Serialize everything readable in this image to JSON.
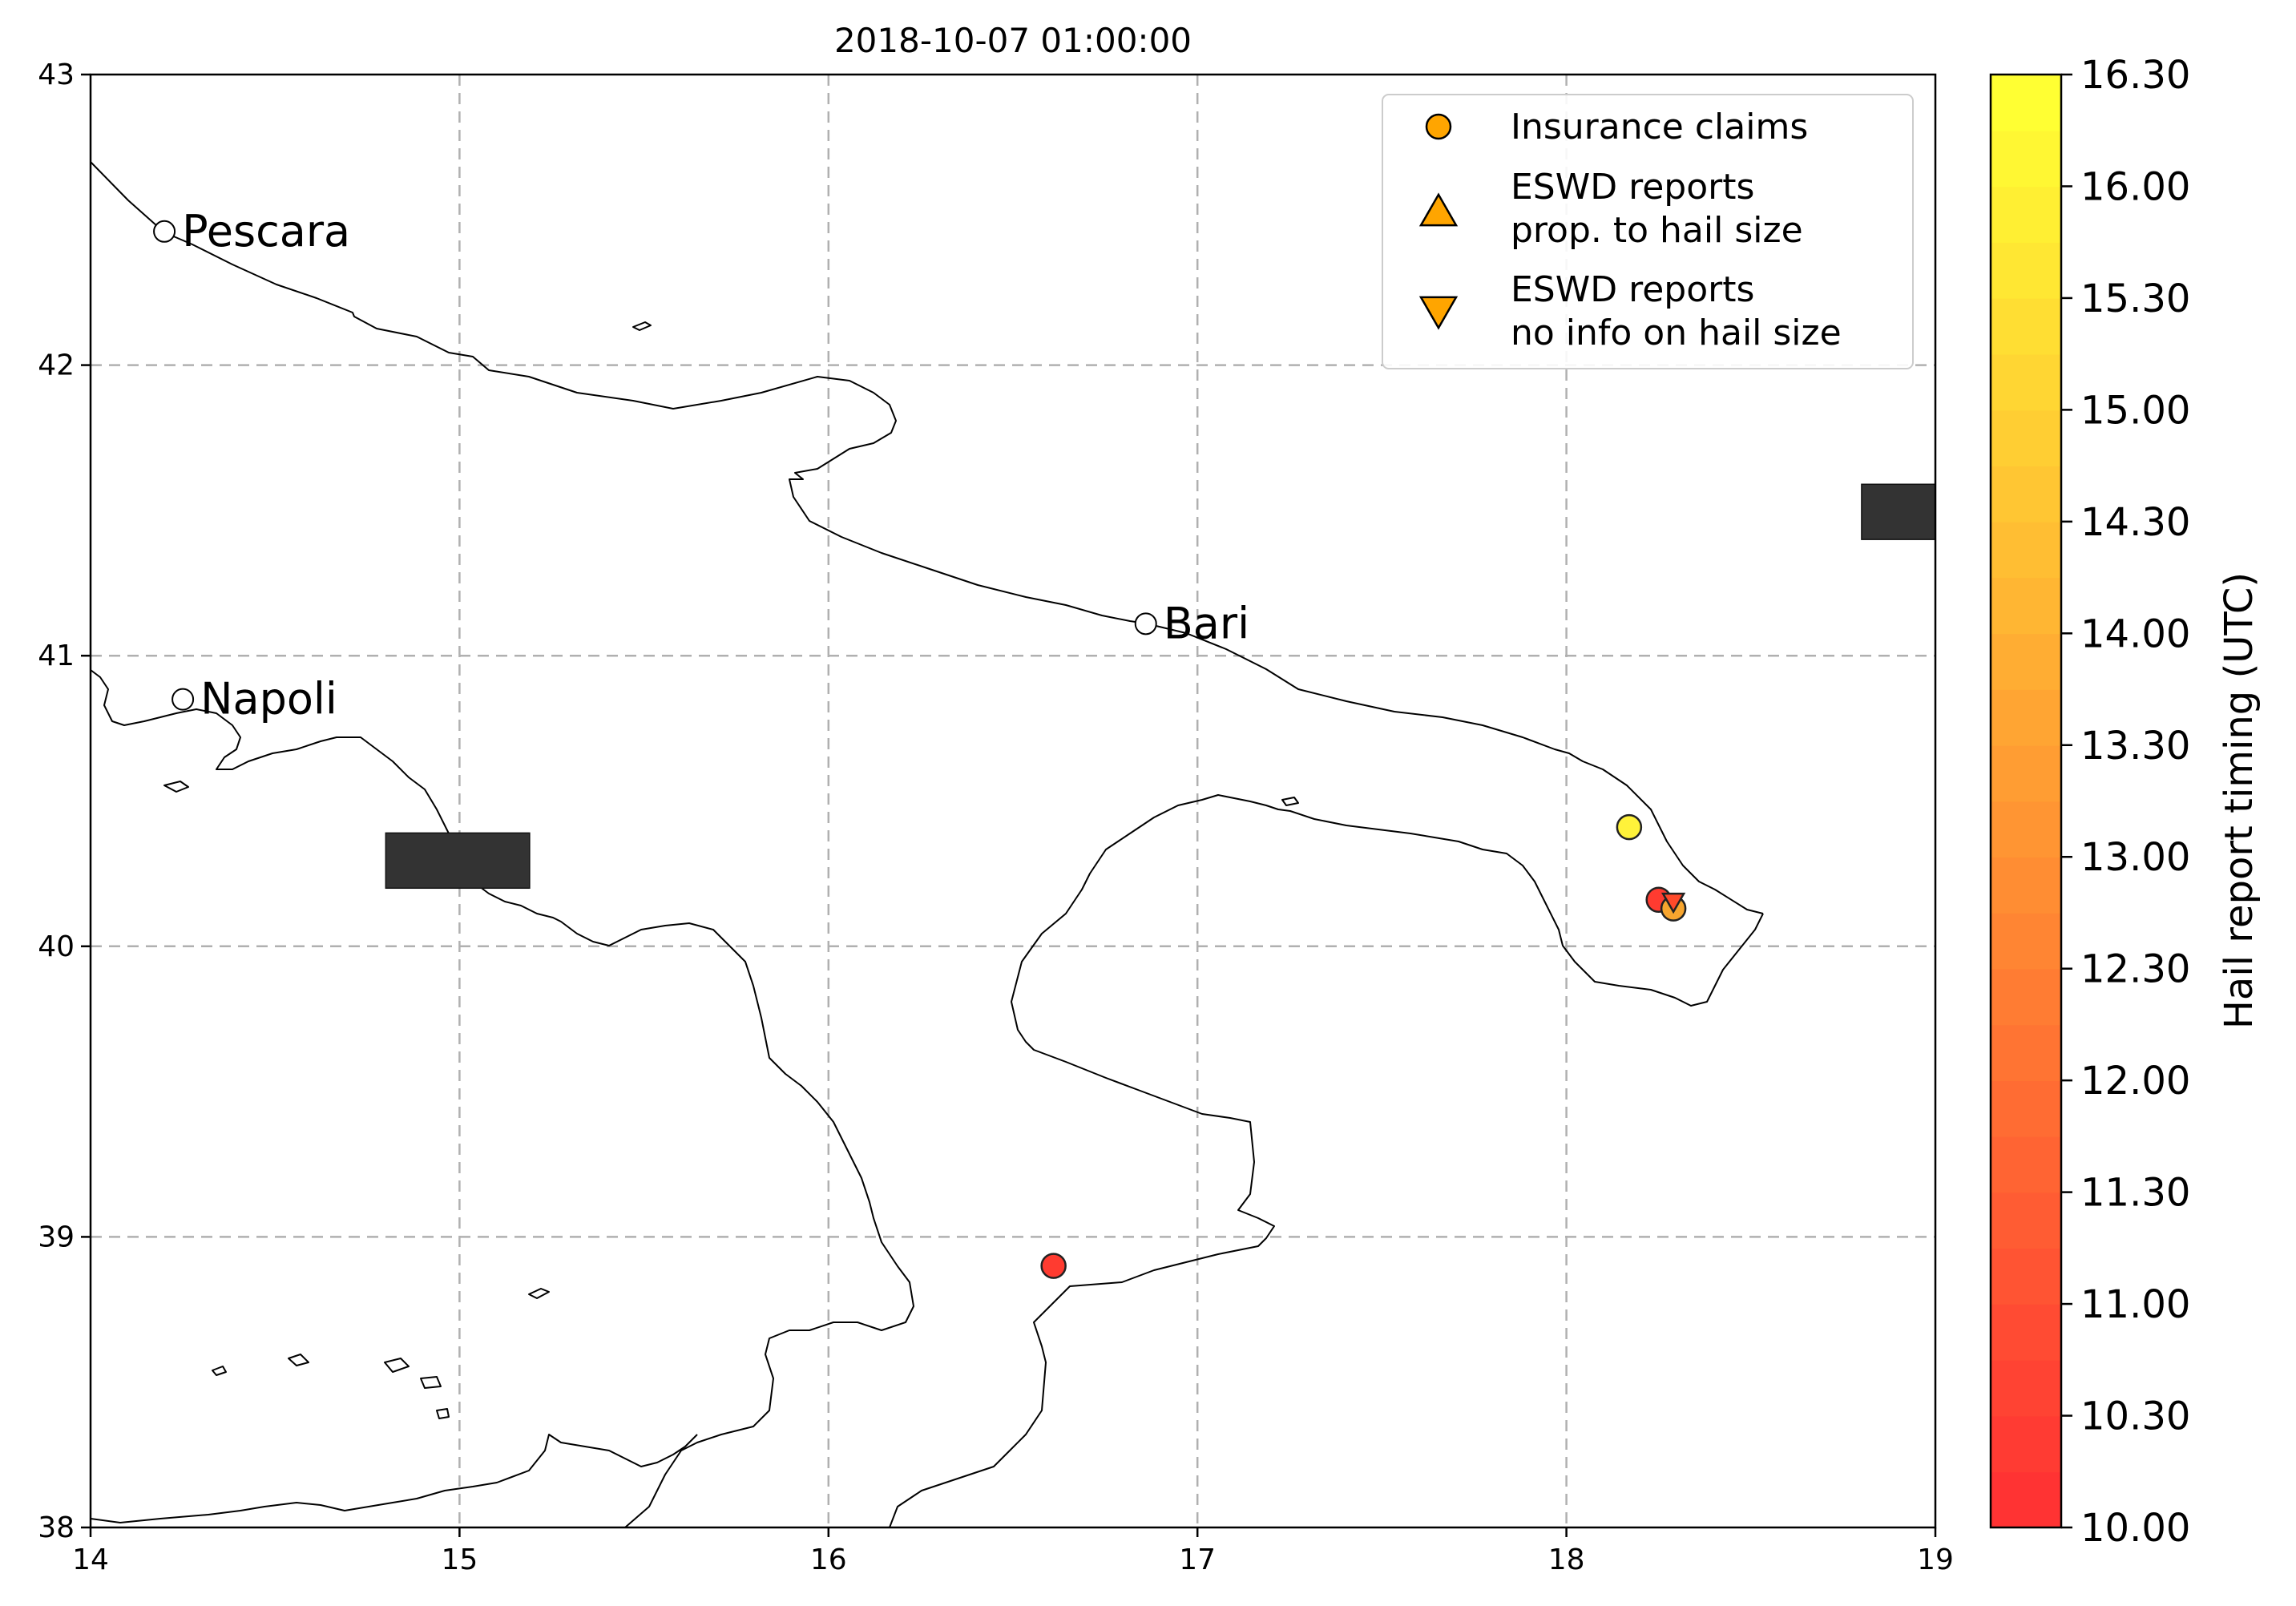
{
  "title": "2018-10-07 01:00:00",
  "map": {
    "x_ticks": [
      "14",
      "15",
      "16",
      "17",
      "18",
      "19"
    ],
    "y_ticks": [
      "38",
      "39",
      "40",
      "41",
      "42",
      "43"
    ],
    "xlim": [
      14,
      19
    ],
    "ylim": [
      38,
      43
    ],
    "grid": true
  },
  "cities": [
    {
      "name": "Pescara",
      "lon": 14.2,
      "lat": 42.46
    },
    {
      "name": "Napoli",
      "lon": 14.25,
      "lat": 40.85
    },
    {
      "name": "Bari",
      "lon": 16.86,
      "lat": 41.11
    }
  ],
  "legend": {
    "placement": "top-right",
    "entries": [
      {
        "marker": "circle",
        "label_lines": [
          "Insurance claims"
        ]
      },
      {
        "marker": "triangle-up",
        "label_lines": [
          "ESWD reports",
          " prop. to hail size"
        ]
      },
      {
        "marker": "triangle-down",
        "label_lines": [
          "ESWD reports",
          " no info on hail size"
        ]
      }
    ]
  },
  "colorbar": {
    "label": "Hail report timing (UTC)",
    "tick_labels": [
      "10.00",
      "10.30",
      "11.00",
      "11.30",
      "12.00",
      "12.30",
      "13.00",
      "13.30",
      "14.00",
      "14.30",
      "15.00",
      "15.30",
      "16.00",
      "16.30"
    ],
    "color_low": "#ff3333",
    "color_high": "#ffff33",
    "levels": 26
  },
  "reports": [
    {
      "type": "circle",
      "lon": 18.17,
      "lat": 40.41,
      "color": "#fff23a"
    },
    {
      "type": "circle",
      "lon": 18.25,
      "lat": 40.16,
      "color": "#ff3b30"
    },
    {
      "type": "circle",
      "lon": 18.29,
      "lat": 40.13,
      "color": "#f7a52e"
    },
    {
      "type": "triangle-down",
      "lon": 18.29,
      "lat": 40.15,
      "color": "#ff4a2a"
    },
    {
      "type": "circle",
      "lon": 16.61,
      "lat": 38.9,
      "color": "#ff3b30"
    }
  ],
  "dark_boxes": [
    {
      "lon0": 14.8,
      "lon1": 15.19,
      "lat0": 40.2,
      "lat1": 40.39
    },
    {
      "lon0": 18.8,
      "lon1": 19.0,
      "lat0": 41.4,
      "lat1": 41.59
    }
  ],
  "colors": {
    "marker_edge": "#222222",
    "grid": "#b0b0b0",
    "coast": "#000000",
    "dark_box": "#333333",
    "legend_marker": "#ffa500"
  }
}
